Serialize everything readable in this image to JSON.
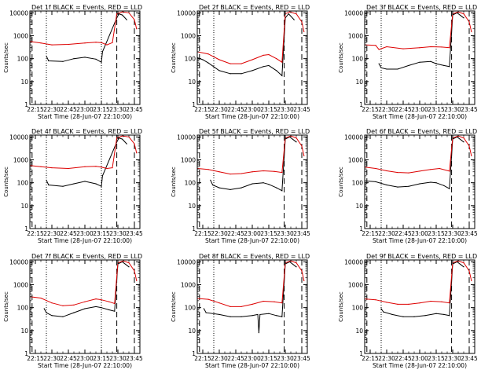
{
  "colors": {
    "events": "#000000",
    "lld": "#dd0000",
    "frame": "#000000"
  },
  "common": {
    "xlabel": "Start Time (28-Jun-07 22:10:00)",
    "ylabel": "Counts/sec",
    "x_ticks": [
      "22:15",
      "22:30",
      "22:45",
      "23:00",
      "23:15",
      "23:30",
      "23:45"
    ],
    "y_ticks": [
      "1",
      "10",
      "100",
      "1000",
      "10000"
    ]
  },
  "chart_data": [
    {
      "type": "line",
      "title": "Det 1f BLACK = Events, RED = LLD",
      "xlabel": "Start Time (28-Jun-07 22:10:00)",
      "ylabel": "Counts/sec",
      "yscale": "log",
      "ylim": [
        1,
        12000
      ],
      "xlim": [
        "22:10",
        "23:50"
      ],
      "vlines_dashed": [
        "22:12",
        "23:29",
        "23:45"
      ],
      "vlines_dotted": [
        "22:25",
        "23:15"
      ],
      "series": [
        {
          "name": "Events",
          "color": "#000000",
          "x": [
            "22:25",
            "22:27",
            "22:40",
            "22:50",
            "23:00",
            "23:10",
            "23:15",
            "23:16",
            "23:29",
            "23:31",
            "23:34",
            "23:38"
          ],
          "y": [
            130,
            80,
            75,
            100,
            115,
            95,
            70,
            200,
            6000,
            9000,
            8000,
            5000
          ]
        },
        {
          "name": "LLD",
          "color": "#dd0000",
          "x": [
            "22:10",
            "22:20",
            "22:30",
            "22:45",
            "23:00",
            "23:10",
            "23:15",
            "23:20",
            "23:25",
            "23:29",
            "23:34",
            "23:40",
            "23:45",
            "23:47"
          ],
          "y": [
            560,
            480,
            400,
            420,
            480,
            520,
            500,
            400,
            500,
            9000,
            11000,
            10000,
            5000,
            2000
          ]
        }
      ]
    },
    {
      "type": "line",
      "title": "Det 2f BLACK = Events, RED = LLD",
      "xlabel": "Start Time (28-Jun-07 22:10:00)",
      "ylabel": "Counts/sec",
      "yscale": "log",
      "ylim": [
        1,
        12000
      ],
      "xlim": [
        "22:10",
        "23:50"
      ],
      "vlines_dashed": [
        "22:12",
        "23:29",
        "23:45"
      ],
      "vlines_dotted": [
        "22:25"
      ],
      "series": [
        {
          "name": "Events",
          "color": "#000000",
          "x": [
            "22:10",
            "22:15",
            "22:20",
            "22:30",
            "22:40",
            "22:50",
            "23:00",
            "23:10",
            "23:15",
            "23:22",
            "23:27",
            "23:30",
            "23:33",
            "23:38"
          ],
          "y": [
            110,
            90,
            65,
            30,
            22,
            22,
            30,
            45,
            50,
            30,
            18,
            6000,
            9000,
            5000
          ]
        },
        {
          "name": "LLD",
          "color": "#dd0000",
          "x": [
            "22:10",
            "22:20",
            "22:30",
            "22:40",
            "22:50",
            "23:00",
            "23:10",
            "23:15",
            "23:22",
            "23:27",
            "23:30",
            "23:34",
            "23:40",
            "23:45",
            "23:47"
          ],
          "y": [
            200,
            160,
            90,
            60,
            60,
            90,
            140,
            150,
            100,
            70,
            9000,
            11000,
            9000,
            4000,
            1500
          ]
        }
      ]
    },
    {
      "type": "line",
      "title": "Det 3f BLACK = Events, RED = LLD",
      "xlabel": "Start Time (28-Jun-07 22:10:00)",
      "ylabel": "Counts/sec",
      "yscale": "log",
      "ylim": [
        1,
        12000
      ],
      "xlim": [
        "22:10",
        "23:50"
      ],
      "vlines_dashed": [
        "22:12",
        "23:29",
        "23:45"
      ],
      "vlines_dotted": [
        "22:25",
        "23:15"
      ],
      "series": [
        {
          "name": "Events",
          "color": "#000000",
          "x": [
            "22:23",
            "22:25",
            "22:30",
            "22:40",
            "22:50",
            "23:00",
            "23:10",
            "23:15",
            "23:22",
            "23:27",
            "23:30",
            "23:34",
            "23:40"
          ],
          "y": [
            60,
            40,
            35,
            35,
            50,
            70,
            75,
            60,
            50,
            45,
            8000,
            10000,
            6000
          ]
        },
        {
          "name": "LLD",
          "color": "#dd0000",
          "x": [
            "22:10",
            "22:20",
            "22:23",
            "22:30",
            "22:45",
            "23:00",
            "23:10",
            "23:20",
            "23:27",
            "23:30",
            "23:35",
            "23:40",
            "23:45",
            "23:47"
          ],
          "y": [
            400,
            380,
            250,
            330,
            270,
            300,
            330,
            320,
            300,
            9000,
            11000,
            9000,
            4000,
            1500
          ]
        }
      ]
    },
    {
      "type": "line",
      "title": "Det 4f BLACK = Events, RED = LLD",
      "xlabel": "Start Time (28-Jun-07 22:10:00)",
      "ylabel": "Counts/sec",
      "yscale": "log",
      "ylim": [
        1,
        12000
      ],
      "xlim": [
        "22:10",
        "23:50"
      ],
      "vlines_dashed": [
        "22:12",
        "23:29",
        "23:45"
      ],
      "vlines_dotted": [
        "22:25",
        "23:15"
      ],
      "series": [
        {
          "name": "Events",
          "color": "#000000",
          "x": [
            "22:25",
            "22:27",
            "22:40",
            "22:50",
            "23:00",
            "23:10",
            "23:15",
            "23:16",
            "23:29",
            "23:31",
            "23:34",
            "23:38"
          ],
          "y": [
            130,
            80,
            70,
            90,
            115,
            90,
            70,
            200,
            6000,
            9000,
            8000,
            5000
          ]
        },
        {
          "name": "LLD",
          "color": "#dd0000",
          "x": [
            "22:10",
            "22:20",
            "22:30",
            "22:45",
            "23:00",
            "23:10",
            "23:15",
            "23:20",
            "23:25",
            "23:29",
            "23:34",
            "23:40",
            "23:45",
            "23:47"
          ],
          "y": [
            560,
            500,
            450,
            420,
            500,
            520,
            480,
            420,
            450,
            9000,
            11000,
            10000,
            5000,
            2000
          ]
        }
      ]
    },
    {
      "type": "line",
      "title": "Det 5f BLACK = Events, RED = LLD",
      "xlabel": "Start Time (28-Jun-07 22:10:00)",
      "ylabel": "Counts/sec",
      "yscale": "log",
      "ylim": [
        1,
        12000
      ],
      "xlim": [
        "22:10",
        "23:50"
      ],
      "vlines_dashed": [
        "22:12",
        "23:29",
        "23:45"
      ],
      "vlines_dotted": [
        "22:25"
      ],
      "series": [
        {
          "name": "Events",
          "color": "#000000",
          "x": [
            "22:22",
            "22:24",
            "22:30",
            "22:40",
            "22:50",
            "23:00",
            "23:10",
            "23:15",
            "23:22",
            "23:27",
            "23:30",
            "23:34",
            "23:40"
          ],
          "y": [
            130,
            80,
            60,
            50,
            60,
            90,
            100,
            85,
            60,
            45,
            8000,
            10000,
            6000
          ]
        },
        {
          "name": "LLD",
          "color": "#dd0000",
          "x": [
            "22:10",
            "22:20",
            "22:30",
            "22:40",
            "22:50",
            "23:00",
            "23:10",
            "23:20",
            "23:27",
            "23:30",
            "23:35",
            "23:40",
            "23:45",
            "23:47"
          ],
          "y": [
            420,
            380,
            300,
            240,
            250,
            300,
            330,
            310,
            280,
            9000,
            11000,
            9000,
            4000,
            1500
          ]
        }
      ]
    },
    {
      "type": "line",
      "title": "Det 6f BLACK = Events, RED = LLD",
      "xlabel": "Start Time (28-Jun-07 22:10:00)",
      "ylabel": "Counts/sec",
      "yscale": "log",
      "ylim": [
        1,
        12000
      ],
      "xlim": [
        "22:10",
        "23:50"
      ],
      "vlines_dashed": [
        "22:12",
        "23:29",
        "23:45"
      ],
      "vlines_dotted": [
        "22:25"
      ],
      "series": [
        {
          "name": "Events",
          "color": "#000000",
          "x": [
            "22:10",
            "22:20",
            "22:30",
            "22:40",
            "22:50",
            "23:00",
            "23:10",
            "23:15",
            "23:22",
            "23:27",
            "23:30",
            "23:34",
            "23:40"
          ],
          "y": [
            120,
            110,
            80,
            65,
            70,
            90,
            105,
            100,
            75,
            55,
            8000,
            10000,
            6000
          ]
        },
        {
          "name": "LLD",
          "color": "#dd0000",
          "x": [
            "22:10",
            "22:20",
            "22:30",
            "22:40",
            "22:50",
            "23:00",
            "23:10",
            "23:18",
            "23:27",
            "23:30",
            "23:35",
            "23:40",
            "23:45",
            "23:47"
          ],
          "y": [
            480,
            420,
            330,
            280,
            270,
            320,
            380,
            420,
            320,
            9000,
            11000,
            9000,
            4000,
            1500
          ]
        }
      ]
    },
    {
      "type": "line",
      "title": "Det 7f BLACK = Events, RED = LLD",
      "xlabel": "Start Time (28-Jun-07 22:10:00)",
      "ylabel": "Counts/sec",
      "yscale": "log",
      "ylim": [
        1,
        12000
      ],
      "xlim": [
        "22:10",
        "23:50"
      ],
      "vlines_dashed": [
        "22:12",
        "23:29",
        "23:45"
      ],
      "vlines_dotted": [
        "22:25",
        "23:15"
      ],
      "series": [
        {
          "name": "Events",
          "color": "#000000",
          "x": [
            "22:23",
            "22:25",
            "22:30",
            "22:40",
            "22:50",
            "23:00",
            "23:10",
            "23:15",
            "23:22",
            "23:27",
            "23:30",
            "23:34",
            "23:40"
          ],
          "y": [
            90,
            60,
            45,
            40,
            60,
            90,
            110,
            100,
            80,
            70,
            8000,
            10000,
            6000
          ]
        },
        {
          "name": "LLD",
          "color": "#dd0000",
          "x": [
            "22:10",
            "22:20",
            "22:30",
            "22:40",
            "22:50",
            "23:00",
            "23:10",
            "23:15",
            "23:22",
            "23:27",
            "23:30",
            "23:35",
            "23:40",
            "23:45",
            "23:47"
          ],
          "y": [
            300,
            260,
            160,
            120,
            130,
            180,
            240,
            220,
            180,
            150,
            9000,
            11000,
            9000,
            4000,
            1500
          ]
        }
      ]
    },
    {
      "type": "line",
      "title": "Det 8f BLACK = Events, RED = LLD",
      "xlabel": "Start Time (28-Jun-07 22:10:00)",
      "ylabel": "Counts/sec",
      "yscale": "log",
      "ylim": [
        1,
        12000
      ],
      "xlim": [
        "22:10",
        "23:50"
      ],
      "vlines_dashed": [
        "22:12",
        "23:29",
        "23:45"
      ],
      "vlines_dotted": [
        "22:25"
      ],
      "series": [
        {
          "name": "Events",
          "color": "#000000",
          "x": [
            "22:16",
            "22:18",
            "22:30",
            "22:40",
            "22:50",
            "23:00",
            "23:05",
            "23:06",
            "23:07",
            "23:15",
            "23:22",
            "23:27",
            "23:30",
            "23:34",
            "23:40"
          ],
          "y": [
            90,
            60,
            50,
            40,
            40,
            45,
            50,
            8,
            50,
            55,
            45,
            40,
            8000,
            10000,
            6000
          ]
        },
        {
          "name": "LLD",
          "color": "#dd0000",
          "x": [
            "22:10",
            "22:20",
            "22:30",
            "22:40",
            "22:50",
            "23:00",
            "23:10",
            "23:20",
            "23:27",
            "23:30",
            "23:35",
            "23:40",
            "23:45",
            "23:47"
          ],
          "y": [
            250,
            230,
            160,
            110,
            110,
            140,
            190,
            180,
            160,
            9000,
            11000,
            9000,
            4000,
            1500
          ]
        }
      ]
    },
    {
      "type": "line",
      "title": "Det 9f BLACK = Events, RED = LLD",
      "xlabel": "Start Time (28-Jun-07 22:10:00)",
      "ylabel": "Counts/sec",
      "yscale": "log",
      "ylim": [
        1,
        12000
      ],
      "xlim": [
        "22:10",
        "23:50"
      ],
      "vlines_dashed": [
        "22:12",
        "23:29",
        "23:45"
      ],
      "vlines_dotted": [
        "22:25"
      ],
      "series": [
        {
          "name": "Events",
          "color": "#000000",
          "x": [
            "22:25",
            "22:27",
            "22:35",
            "22:45",
            "22:55",
            "23:05",
            "23:15",
            "23:22",
            "23:27",
            "23:30",
            "23:34",
            "23:40"
          ],
          "y": [
            90,
            65,
            50,
            40,
            40,
            45,
            55,
            50,
            45,
            8000,
            10000,
            6000
          ]
        },
        {
          "name": "LLD",
          "color": "#dd0000",
          "x": [
            "22:10",
            "22:20",
            "22:30",
            "22:40",
            "22:50",
            "23:00",
            "23:10",
            "23:20",
            "23:27",
            "23:30",
            "23:35",
            "23:40",
            "23:45",
            "23:47"
          ],
          "y": [
            240,
            220,
            170,
            140,
            140,
            160,
            190,
            180,
            160,
            9000,
            11000,
            9000,
            4000,
            1500
          ]
        }
      ]
    }
  ]
}
